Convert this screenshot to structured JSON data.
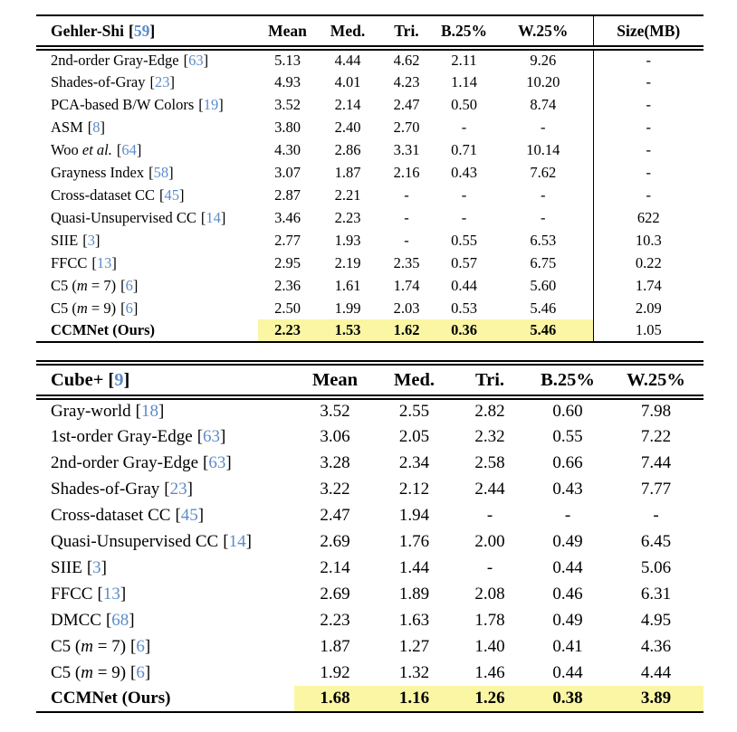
{
  "colors": {
    "citation_blue": "#5b8cca",
    "highlight_yellow": "#fbf6a3",
    "rule_black": "#000000",
    "text_black": "#000000",
    "background_white": "#ffffff"
  },
  "meta": {
    "bracket_open": "[",
    "bracket_close": "]"
  },
  "tables": [
    {
      "header": {
        "dataset": "Gehler-Shi",
        "cite": "59",
        "columns": [
          "Mean",
          "Med.",
          "Tri.",
          "B.25%",
          "W.25%"
        ],
        "size_column": "Size(MB)"
      },
      "rows": [
        {
          "segments": [
            {
              "t": "2nd-order Gray-Edge",
              "i": false
            }
          ],
          "cite": "63",
          "values": [
            "5.13",
            "4.44",
            "4.62",
            "2.11",
            "9.26"
          ],
          "size": "-",
          "highlight": false,
          "bold": false
        },
        {
          "segments": [
            {
              "t": "Shades-of-Gray",
              "i": false
            }
          ],
          "cite": "23",
          "values": [
            "4.93",
            "4.01",
            "4.23",
            "1.14",
            "10.20"
          ],
          "size": "-",
          "highlight": false,
          "bold": false
        },
        {
          "segments": [
            {
              "t": "PCA-based B/W Colors",
              "i": false
            }
          ],
          "cite": "19",
          "values": [
            "3.52",
            "2.14",
            "2.47",
            "0.50",
            "8.74"
          ],
          "size": "-",
          "highlight": false,
          "bold": false
        },
        {
          "segments": [
            {
              "t": "ASM",
              "i": false
            }
          ],
          "cite": "8",
          "values": [
            "3.80",
            "2.40",
            "2.70",
            "-",
            "-"
          ],
          "size": "-",
          "highlight": false,
          "bold": false
        },
        {
          "segments": [
            {
              "t": "Woo ",
              "i": false
            },
            {
              "t": "et al.",
              "i": true
            }
          ],
          "cite": "64",
          "values": [
            "4.30",
            "2.86",
            "3.31",
            "0.71",
            "10.14"
          ],
          "size": "-",
          "highlight": false,
          "bold": false
        },
        {
          "segments": [
            {
              "t": "Grayness Index",
              "i": false
            }
          ],
          "cite": "58",
          "values": [
            "3.07",
            "1.87",
            "2.16",
            "0.43",
            "7.62"
          ],
          "size": "-",
          "highlight": false,
          "bold": false
        },
        {
          "segments": [
            {
              "t": "Cross-dataset CC",
              "i": false
            }
          ],
          "cite": "45",
          "values": [
            "2.87",
            "2.21",
            "-",
            "-",
            "-"
          ],
          "size": "-",
          "highlight": false,
          "bold": false
        },
        {
          "segments": [
            {
              "t": "Quasi-Unsupervised CC",
              "i": false
            }
          ],
          "cite": "14",
          "values": [
            "3.46",
            "2.23",
            "-",
            "-",
            "-"
          ],
          "size": "622",
          "highlight": false,
          "bold": false
        },
        {
          "segments": [
            {
              "t": "SIIE",
              "i": false
            }
          ],
          "cite": "3",
          "values": [
            "2.77",
            "1.93",
            "-",
            "0.55",
            "6.53"
          ],
          "size": "10.3",
          "highlight": false,
          "bold": false
        },
        {
          "segments": [
            {
              "t": "FFCC",
              "i": false
            }
          ],
          "cite": "13",
          "values": [
            "2.95",
            "2.19",
            "2.35",
            "0.57",
            "6.75"
          ],
          "size": "0.22",
          "highlight": false,
          "bold": false
        },
        {
          "segments": [
            {
              "t": "C5 (",
              "i": false
            },
            {
              "t": "m",
              "i": true
            },
            {
              "t": " = 7)",
              "i": false
            }
          ],
          "cite": "6",
          "values": [
            "2.36",
            "1.61",
            "1.74",
            "0.44",
            "5.60"
          ],
          "size": "1.74",
          "highlight": false,
          "bold": false
        },
        {
          "segments": [
            {
              "t": "C5 (",
              "i": false
            },
            {
              "t": "m",
              "i": true
            },
            {
              "t": " = 9)",
              "i": false
            }
          ],
          "cite": "6",
          "values": [
            "2.50",
            "1.99",
            "2.03",
            "0.53",
            "5.46"
          ],
          "size": "2.09",
          "highlight": false,
          "bold": false
        },
        {
          "segments": [
            {
              "t": "CCMNet (Ours)",
              "i": false
            }
          ],
          "cite": null,
          "values": [
            "2.23",
            "1.53",
            "1.62",
            "0.36",
            "5.46"
          ],
          "size": "1.05",
          "highlight": true,
          "bold": true
        }
      ]
    },
    {
      "header": {
        "dataset": "Cube+",
        "cite": "9",
        "columns": [
          "Mean",
          "Med.",
          "Tri.",
          "B.25%",
          "W.25%"
        ],
        "size_column": null
      },
      "rows": [
        {
          "segments": [
            {
              "t": "Gray-world",
              "i": false
            }
          ],
          "cite": "18",
          "values": [
            "3.52",
            "2.55",
            "2.82",
            "0.60",
            "7.98"
          ],
          "highlight": false,
          "bold": false
        },
        {
          "segments": [
            {
              "t": "1st-order Gray-Edge",
              "i": false
            }
          ],
          "cite": "63",
          "values": [
            "3.06",
            "2.05",
            "2.32",
            "0.55",
            "7.22"
          ],
          "highlight": false,
          "bold": false
        },
        {
          "segments": [
            {
              "t": "2nd-order Gray-Edge",
              "i": false
            }
          ],
          "cite": "63",
          "values": [
            "3.28",
            "2.34",
            "2.58",
            "0.66",
            "7.44"
          ],
          "highlight": false,
          "bold": false
        },
        {
          "segments": [
            {
              "t": "Shades-of-Gray",
              "i": false
            }
          ],
          "cite": "23",
          "values": [
            "3.22",
            "2.12",
            "2.44",
            "0.43",
            "7.77"
          ],
          "highlight": false,
          "bold": false
        },
        {
          "segments": [
            {
              "t": "Cross-dataset CC",
              "i": false
            }
          ],
          "cite": "45",
          "values": [
            "2.47",
            "1.94",
            "-",
            "-",
            "-"
          ],
          "highlight": false,
          "bold": false
        },
        {
          "segments": [
            {
              "t": "Quasi-Unsupervised CC",
              "i": false
            }
          ],
          "cite": "14",
          "values": [
            "2.69",
            "1.76",
            "2.00",
            "0.49",
            "6.45"
          ],
          "highlight": false,
          "bold": false
        },
        {
          "segments": [
            {
              "t": "SIIE",
              "i": false
            }
          ],
          "cite": "3",
          "values": [
            "2.14",
            "1.44",
            "-",
            "0.44",
            "5.06"
          ],
          "highlight": false,
          "bold": false
        },
        {
          "segments": [
            {
              "t": "FFCC",
              "i": false
            }
          ],
          "cite": "13",
          "values": [
            "2.69",
            "1.89",
            "2.08",
            "0.46",
            "6.31"
          ],
          "highlight": false,
          "bold": false
        },
        {
          "segments": [
            {
              "t": "DMCC",
              "i": false
            }
          ],
          "cite": "68",
          "values": [
            "2.23",
            "1.63",
            "1.78",
            "0.49",
            "4.95"
          ],
          "highlight": false,
          "bold": false
        },
        {
          "segments": [
            {
              "t": "C5 (",
              "i": false
            },
            {
              "t": "m",
              "i": true
            },
            {
              "t": " = 7)",
              "i": false
            }
          ],
          "cite": "6",
          "values": [
            "1.87",
            "1.27",
            "1.40",
            "0.41",
            "4.36"
          ],
          "highlight": false,
          "bold": false
        },
        {
          "segments": [
            {
              "t": "C5 (",
              "i": false
            },
            {
              "t": "m",
              "i": true
            },
            {
              "t": " = 9)",
              "i": false
            }
          ],
          "cite": "6",
          "values": [
            "1.92",
            "1.32",
            "1.46",
            "0.44",
            "4.44"
          ],
          "highlight": false,
          "bold": false
        },
        {
          "segments": [
            {
              "t": "CCMNet (Ours)",
              "i": false
            }
          ],
          "cite": null,
          "values": [
            "1.68",
            "1.16",
            "1.26",
            "0.38",
            "3.89"
          ],
          "highlight": true,
          "bold": true
        }
      ]
    }
  ]
}
